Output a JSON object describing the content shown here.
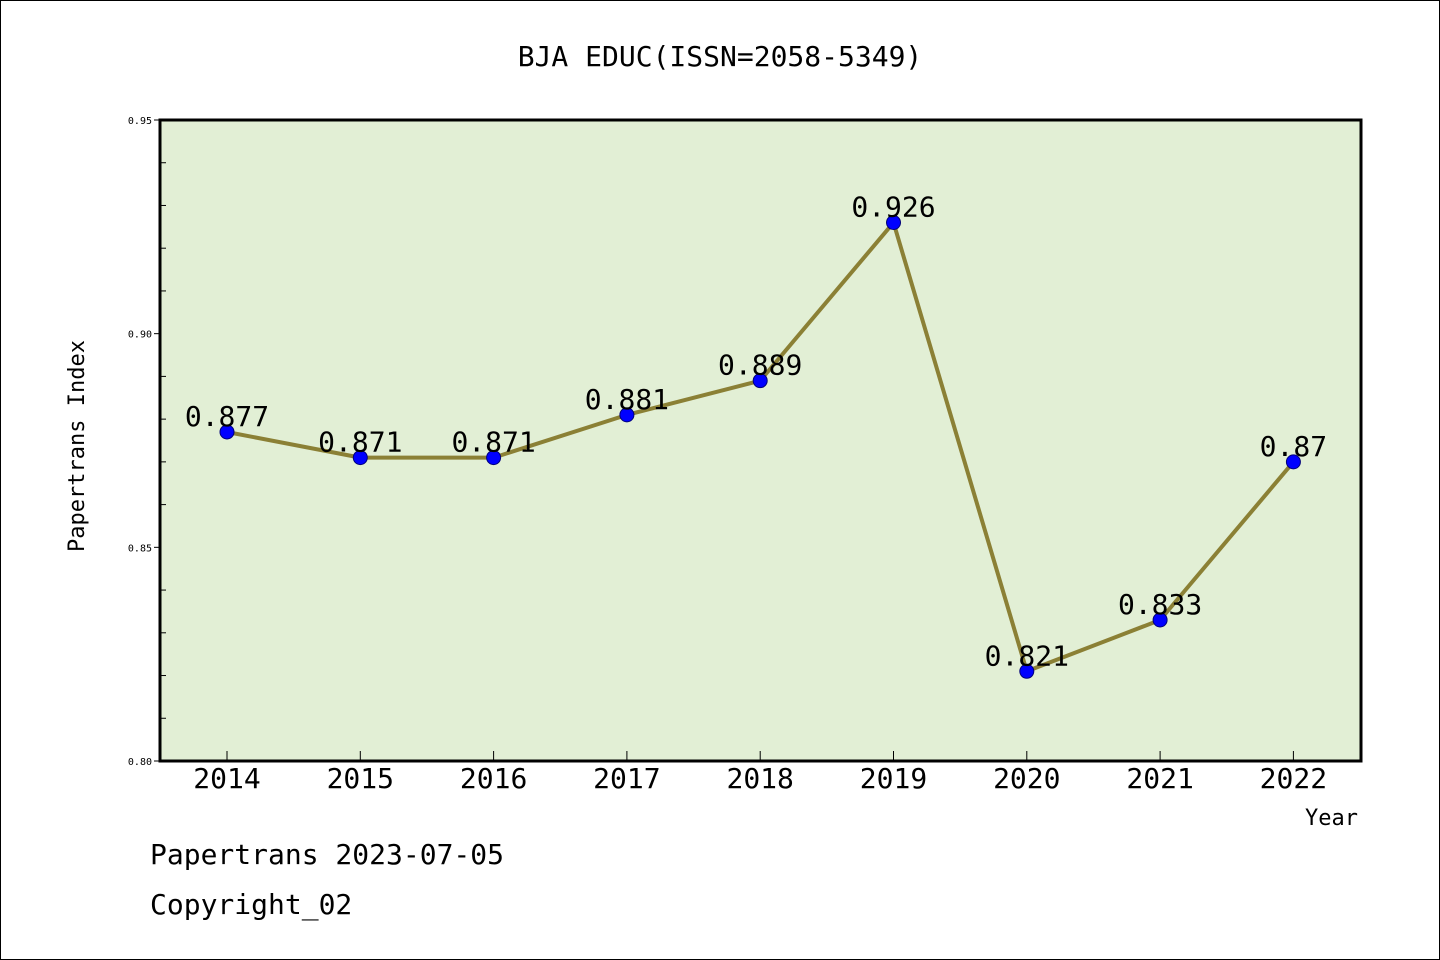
{
  "chart_data": {
    "type": "line",
    "title": "BJA EDUC(ISSN=2058-5349)",
    "xlabel": "Year",
    "ylabel": "Papertrans Index",
    "categories": [
      "2014",
      "2015",
      "2016",
      "2017",
      "2018",
      "2019",
      "2020",
      "2021",
      "2022"
    ],
    "values": [
      0.877,
      0.871,
      0.871,
      0.881,
      0.889,
      0.926,
      0.821,
      0.833,
      0.87
    ],
    "data_labels": [
      "0.877",
      "0.871",
      "0.871",
      "0.881",
      "0.889",
      "0.926",
      "0.821",
      "0.833",
      "0.87"
    ],
    "ylim": [
      0.8,
      0.95
    ],
    "yticks": [
      "0.80",
      "0.85",
      "0.90",
      "0.95"
    ],
    "grid": false,
    "colors": {
      "plot_background": "#e2efd5",
      "line": "#8b8035",
      "marker": "#0000ff"
    }
  },
  "footer": {
    "line1": "Papertrans 2023-07-05",
    "line2": "Copyright_02"
  }
}
